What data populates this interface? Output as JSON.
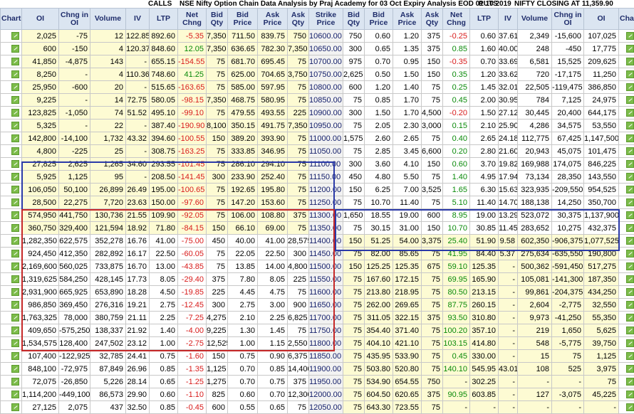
{
  "header": {
    "calls": "CALLS",
    "title": "NSE Nifty Option Chain Data Analysis by Praj Academy for 03 Oct Expiry Analysis EOD 01 10 2019",
    "puts": "PUTS",
    "closing": "NIFTY CLOSING AT 11,359.90"
  },
  "columns": [
    "Chart",
    "OI",
    "Chng in OI",
    "Volume",
    "IV",
    "LTP",
    "Net Chng",
    "Bid Qty",
    "Bid Price",
    "Ask Price",
    "Ask Qty",
    "Strike Price",
    "Bid Qty",
    "Bid Price",
    "Ask Price",
    "Ask Qty",
    "Net Chng",
    "LTP",
    "IV",
    "Volume",
    "Chng in OI",
    "OI",
    "Chart"
  ],
  "colors": {
    "itm_bg": "#fdfbd3",
    "header_bg": "#dbe5f1",
    "negative": "#d81b1b",
    "positive": "#0a8a0a",
    "blue_box": "#2b3aa8",
    "red_box": "#c62828"
  },
  "rows": [
    [
      "2,025",
      "-75",
      "12",
      "122.85",
      "892.60",
      "-5.35",
      "7,350",
      "711.50",
      "839.75",
      "750",
      "10600.00",
      "750",
      "0.60",
      "1.20",
      "375",
      "-0.25",
      "0.60",
      "37.61",
      "2,349",
      "-15,600",
      "107,025"
    ],
    [
      "600",
      "-150",
      "4",
      "120.37",
      "848.60",
      "12.05",
      "7,350",
      "636.65",
      "782.30",
      "7,350",
      "10650.00",
      "300",
      "0.65",
      "1.35",
      "375",
      "0.85",
      "1.60",
      "40.00",
      "248",
      "-450",
      "17,775"
    ],
    [
      "41,850",
      "-4,875",
      "143",
      "-",
      "655.15",
      "-154.55",
      "75",
      "681.70",
      "695.45",
      "75",
      "10700.00",
      "975",
      "0.70",
      "0.95",
      "150",
      "-0.35",
      "0.70",
      "33.69",
      "6,581",
      "15,525",
      "209,625"
    ],
    [
      "8,250",
      "-",
      "4",
      "110.36",
      "748.60",
      "41.25",
      "75",
      "625.00",
      "704.65",
      "3,750",
      "10750.00",
      "2,625",
      "0.50",
      "1.50",
      "150",
      "0.35",
      "1.20",
      "33.62",
      "720",
      "-17,175",
      "11,250"
    ],
    [
      "25,950",
      "-600",
      "20",
      "-",
      "515.65",
      "-163.65",
      "75",
      "585.00",
      "597.95",
      "75",
      "10800.00",
      "600",
      "1.20",
      "1.40",
      "75",
      "0.25",
      "1.45",
      "32.01",
      "22,505",
      "-119,475",
      "386,850"
    ],
    [
      "9,225",
      "-",
      "14",
      "72.75",
      "580.05",
      "-98.15",
      "7,350",
      "468.75",
      "580.95",
      "75",
      "10850.00",
      "75",
      "0.85",
      "1.70",
      "75",
      "0.45",
      "2.00",
      "30.95",
      "784",
      "7,125",
      "24,975"
    ],
    [
      "123,825",
      "-1,050",
      "74",
      "51.52",
      "495.10",
      "-99.10",
      "75",
      "479.55",
      "493.55",
      "225",
      "10900.00",
      "300",
      "1.50",
      "1.70",
      "4,500",
      "-0.20",
      "1.50",
      "27.12",
      "30,445",
      "20,400",
      "644,175"
    ],
    [
      "5,325",
      "-",
      "22",
      "-",
      "387.40",
      "-190.90",
      "8,100",
      "350.15",
      "491.75",
      "7,350",
      "10950.00",
      "75",
      "2.05",
      "2.30",
      "3,000",
      "0.15",
      "2.10",
      "25.90",
      "4,286",
      "34,575",
      "53,550"
    ],
    [
      "142,800",
      "-14,100",
      "1,732",
      "43.32",
      "394.60",
      "-100.55",
      "150",
      "389.20",
      "393.90",
      "75",
      "11000.00",
      "1,575",
      "2.60",
      "2.65",
      "75",
      "0.40",
      "2.65",
      "24.18",
      "112,775",
      "67,425",
      "1,147,500"
    ],
    [
      "4,800",
      "-225",
      "25",
      "-",
      "308.75",
      "-163.25",
      "75",
      "333.85",
      "346.95",
      "75",
      "11050.00",
      "75",
      "2.85",
      "3.45",
      "6,600",
      "0.20",
      "2.80",
      "21.60",
      "20,943",
      "45,075",
      "101,475"
    ],
    [
      "27,825",
      "2,625",
      "1,265",
      "34.60",
      "293.55",
      "-101.45",
      "75",
      "286.10",
      "294.10",
      "75",
      "11100.00",
      "300",
      "3.60",
      "4.10",
      "150",
      "0.60",
      "3.70",
      "19.82",
      "169,988",
      "174,075",
      "846,225"
    ],
    [
      "5,925",
      "1,125",
      "95",
      "-",
      "208.50",
      "-141.45",
      "300",
      "233.90",
      "252.40",
      "75",
      "11150.00",
      "450",
      "4.80",
      "5.50",
      "75",
      "1.40",
      "4.95",
      "17.94",
      "73,134",
      "28,350",
      "143,550"
    ],
    [
      "106,050",
      "50,100",
      "26,899",
      "26.49",
      "195.00",
      "-100.65",
      "75",
      "192.65",
      "195.80",
      "75",
      "11200.00",
      "150",
      "6.25",
      "7.00",
      "3,525",
      "1.65",
      "6.30",
      "15.63",
      "323,935",
      "-209,550",
      "954,525"
    ],
    [
      "28,500",
      "22,275",
      "7,720",
      "23.63",
      "150.00",
      "-97.60",
      "75",
      "147.20",
      "153.60",
      "75",
      "11250.00",
      "75",
      "10.70",
      "11.40",
      "75",
      "5.10",
      "11.40",
      "14.70",
      "188,138",
      "14,250",
      "350,700"
    ],
    [
      "574,950",
      "441,750",
      "130,736",
      "21.55",
      "109.90",
      "-92.05",
      "75",
      "106.00",
      "108.80",
      "375",
      "11300.00",
      "1,650",
      "18.55",
      "19.00",
      "600",
      "8.95",
      "19.00",
      "13.29",
      "523,072",
      "30,375",
      "1,137,900"
    ],
    [
      "360,750",
      "329,400",
      "121,594",
      "18.92",
      "71.80",
      "-84.15",
      "150",
      "66.10",
      "69.00",
      "75",
      "11350.00",
      "75",
      "30.15",
      "31.00",
      "150",
      "10.70",
      "30.85",
      "11.45",
      "283,652",
      "10,275",
      "432,375"
    ],
    [
      "1,282,350",
      "622,575",
      "352,278",
      "16.76",
      "41.00",
      "-75.00",
      "450",
      "40.00",
      "41.00",
      "28,575",
      "11400.00",
      "150",
      "51.25",
      "54.00",
      "3,375",
      "25.40",
      "51.90",
      "9.58",
      "602,350",
      "-906,375",
      "1,077,525"
    ],
    [
      "924,450",
      "412,350",
      "282,892",
      "16.17",
      "22.50",
      "-60.05",
      "75",
      "22.05",
      "22.50",
      "300",
      "11450.00",
      "75",
      "82.00",
      "85.65",
      "75",
      "41.95",
      "84.40",
      "5.37",
      "275,634",
      "-635,550",
      "190,800"
    ],
    [
      "2,169,600",
      "560,025",
      "733,875",
      "16.70",
      "13.00",
      "-43.85",
      "75",
      "13.85",
      "14.00",
      "4,800",
      "11500.00",
      "150",
      "125.25",
      "125.35",
      "675",
      "59.10",
      "125.35",
      "-",
      "500,362",
      "-591,450",
      "517,275"
    ],
    [
      "1,319,625",
      "584,250",
      "428,145",
      "17.73",
      "8.05",
      "-29.40",
      "375",
      "7.80",
      "8.05",
      "225",
      "11550.00",
      "75",
      "167.60",
      "172.15",
      "75",
      "69.95",
      "165.90",
      "-",
      "105,081",
      "-141,300",
      "187,350"
    ],
    [
      "2,931,900",
      "665,925",
      "653,890",
      "18.28",
      "4.50",
      "-19.85",
      "225",
      "4.45",
      "4.75",
      "75",
      "11600.00",
      "75",
      "213.80",
      "218.95",
      "75",
      "80.50",
      "213.15",
      "-",
      "99,861",
      "-204,375",
      "434,250"
    ],
    [
      "986,850",
      "369,450",
      "276,316",
      "19.21",
      "2.75",
      "-12.45",
      "300",
      "2.75",
      "3.00",
      "900",
      "11650.00",
      "75",
      "262.00",
      "269.65",
      "75",
      "87.75",
      "260.15",
      "-",
      "2,604",
      "-2,775",
      "32,550"
    ],
    [
      "1,763,325",
      "78,000",
      "380,759",
      "21.11",
      "2.25",
      "-7.25",
      "4,275",
      "2.10",
      "2.25",
      "6,825",
      "11700.00",
      "75",
      "311.05",
      "322.15",
      "375",
      "93.50",
      "310.80",
      "-",
      "9,973",
      "-41,250",
      "55,350"
    ],
    [
      "409,650",
      "-575,250",
      "138,337",
      "21.92",
      "1.40",
      "-4.00",
      "9,225",
      "1.30",
      "1.45",
      "75",
      "11750.00",
      "75",
      "354.40",
      "371.40",
      "75",
      "100.20",
      "357.10",
      "-",
      "219",
      "1,650",
      "5,625"
    ],
    [
      "1,534,575",
      "128,400",
      "247,502",
      "23.12",
      "1.00",
      "-2.75",
      "12,525",
      "1.00",
      "1.15",
      "2,550",
      "11800.00",
      "75",
      "404.10",
      "421.10",
      "75",
      "103.15",
      "414.80",
      "-",
      "548",
      "-5,775",
      "39,750"
    ],
    [
      "107,400",
      "-122,925",
      "32,785",
      "24.41",
      "0.75",
      "-1.60",
      "150",
      "0.75",
      "0.90",
      "6,375",
      "11850.00",
      "75",
      "435.95",
      "533.90",
      "75",
      "0.45",
      "330.00",
      "-",
      "15",
      "75",
      "1,125"
    ],
    [
      "848,100",
      "-72,975",
      "87,849",
      "26.96",
      "0.85",
      "-1.35",
      "1,125",
      "0.70",
      "0.85",
      "14,400",
      "11900.00",
      "75",
      "503.80",
      "520.80",
      "75",
      "140.10",
      "545.95",
      "43.01",
      "108",
      "525",
      "3,975"
    ],
    [
      "72,075",
      "-26,850",
      "5,226",
      "28.14",
      "0.65",
      "-1.25",
      "1,275",
      "0.70",
      "0.75",
      "375",
      "11950.00",
      "75",
      "534.90",
      "654.55",
      "750",
      "-",
      "302.25",
      "-",
      "-",
      "-",
      "75"
    ],
    [
      "1,114,200",
      "-449,100",
      "86,573",
      "29.90",
      "0.60",
      "-1.10",
      "825",
      "0.60",
      "0.70",
      "12,300",
      "12000.00",
      "75",
      "604.50",
      "620.65",
      "375",
      "90.95",
      "603.85",
      "-",
      "127",
      "-3,075",
      "45,225"
    ],
    [
      "27,125",
      "2,075",
      "437",
      "32.50",
      "0.85",
      "-0.45",
      "600",
      "0.55",
      "0.65",
      "75",
      "12050.00",
      "75",
      "643.30",
      "723.55",
      "75",
      "-",
      "-",
      "-",
      "-",
      "-",
      "-"
    ]
  ]
}
